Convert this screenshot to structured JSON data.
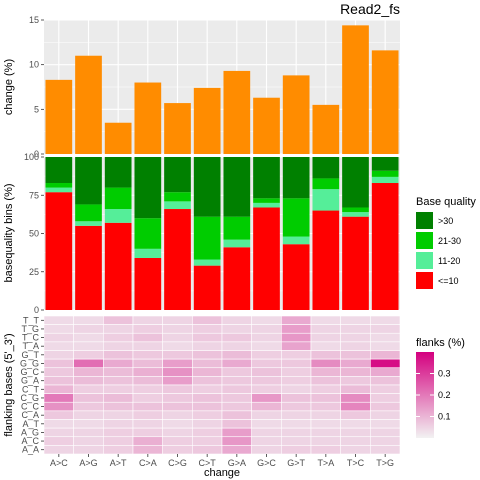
{
  "title": "Read2_fs",
  "x_axis_title": "change",
  "categories": [
    "A>C",
    "A>G",
    "A>T",
    "C>A",
    "C>G",
    "C>T",
    "G>A",
    "G>C",
    "G>T",
    "T>A",
    "T>C",
    "T>G"
  ],
  "chart_data": [
    {
      "type": "bar",
      "ylabel": "change (%)",
      "ylim": [
        0,
        15
      ],
      "yticks": [
        0,
        5,
        10,
        15
      ],
      "color": "#FF8C00",
      "categories": [
        "A>C",
        "A>G",
        "A>T",
        "C>A",
        "C>G",
        "C>T",
        "G>A",
        "G>C",
        "G>T",
        "T>A",
        "T>C",
        "T>G"
      ],
      "values": [
        8.3,
        11.0,
        3.5,
        8.0,
        5.7,
        7.4,
        9.3,
        6.3,
        8.8,
        5.5,
        14.4,
        11.6
      ]
    },
    {
      "type": "bar",
      "stacked": true,
      "ylabel": "basequality bins (%)",
      "ylim": [
        0,
        100
      ],
      "yticks": [
        0,
        25,
        50,
        75,
        100
      ],
      "categories": [
        "A>C",
        "A>G",
        "A>T",
        "C>A",
        "C>G",
        "C>T",
        "G>A",
        "G>C",
        "G>T",
        "T>A",
        "T>C",
        "T>G"
      ],
      "series": [
        {
          "name": "<=10",
          "color": "#FF0000",
          "values": [
            77,
            55,
            57,
            34,
            66,
            29,
            41,
            67,
            43,
            65,
            61,
            83
          ]
        },
        {
          "name": "11-20",
          "color": "#55EE99",
          "values": [
            3,
            3,
            9,
            6,
            5,
            4,
            5,
            3,
            5,
            14,
            3,
            4
          ]
        },
        {
          "name": "21-30",
          "color": "#00CC00",
          "values": [
            3,
            11,
            14,
            20,
            6,
            28,
            15,
            3,
            25,
            7,
            3,
            4
          ]
        },
        {
          "name": ">30",
          "color": "#008000",
          "values": [
            17,
            31,
            20,
            40,
            23,
            39,
            39,
            27,
            27,
            14,
            33,
            9
          ]
        }
      ],
      "legend": {
        "title": "Base quality",
        "entries": [
          ">30",
          "21-30",
          "11-20",
          "<=10"
        ],
        "position": "right"
      }
    },
    {
      "type": "heatmap",
      "ylabel": "flanking bases (5'_3')",
      "rows": [
        "T_T",
        "T_G",
        "T_C",
        "T_A",
        "G_T",
        "G_G",
        "G_C",
        "G_A",
        "C_T",
        "C_G",
        "C_C",
        "C_A",
        "A_T",
        "A_G",
        "A_C",
        "A_A"
      ],
      "columns": [
        "A>C",
        "A>G",
        "A>T",
        "C>A",
        "C>G",
        "C>T",
        "G>A",
        "G>C",
        "G>T",
        "T>A",
        "T>C",
        "T>G"
      ],
      "values": [
        [
          0.04,
          0.04,
          0.08,
          0.05,
          0.05,
          0.08,
          0.05,
          0.04,
          0.12,
          0.04,
          0.04,
          0.04
        ],
        [
          0.04,
          0.05,
          0.05,
          0.06,
          0.05,
          0.06,
          0.05,
          0.05,
          0.14,
          0.05,
          0.05,
          0.05
        ],
        [
          0.05,
          0.04,
          0.06,
          0.08,
          0.05,
          0.07,
          0.07,
          0.05,
          0.15,
          0.05,
          0.05,
          0.04
        ],
        [
          0.04,
          0.04,
          0.05,
          0.05,
          0.04,
          0.05,
          0.05,
          0.04,
          0.13,
          0.04,
          0.05,
          0.04
        ],
        [
          0.05,
          0.06,
          0.08,
          0.07,
          0.07,
          0.08,
          0.09,
          0.06,
          0.06,
          0.08,
          0.08,
          0.1
        ],
        [
          0.08,
          0.22,
          0.12,
          0.09,
          0.14,
          0.09,
          0.12,
          0.07,
          0.07,
          0.17,
          0.12,
          0.38
        ],
        [
          0.07,
          0.1,
          0.09,
          0.11,
          0.16,
          0.1,
          0.07,
          0.08,
          0.06,
          0.1,
          0.1,
          0.12
        ],
        [
          0.08,
          0.09,
          0.08,
          0.09,
          0.14,
          0.08,
          0.07,
          0.07,
          0.06,
          0.08,
          0.07,
          0.08
        ],
        [
          0.1,
          0.06,
          0.06,
          0.06,
          0.07,
          0.06,
          0.07,
          0.06,
          0.05,
          0.06,
          0.09,
          0.06
        ],
        [
          0.2,
          0.08,
          0.09,
          0.06,
          0.07,
          0.08,
          0.07,
          0.15,
          0.08,
          0.08,
          0.17,
          0.06
        ],
        [
          0.16,
          0.07,
          0.08,
          0.08,
          0.08,
          0.08,
          0.07,
          0.1,
          0.07,
          0.07,
          0.18,
          0.07
        ],
        [
          0.07,
          0.05,
          0.05,
          0.06,
          0.05,
          0.06,
          0.08,
          0.05,
          0.05,
          0.05,
          0.07,
          0.05
        ],
        [
          0.04,
          0.04,
          0.05,
          0.05,
          0.04,
          0.05,
          0.08,
          0.04,
          0.04,
          0.04,
          0.04,
          0.04
        ],
        [
          0.05,
          0.05,
          0.06,
          0.06,
          0.05,
          0.06,
          0.14,
          0.05,
          0.05,
          0.05,
          0.05,
          0.05
        ],
        [
          0.06,
          0.05,
          0.06,
          0.11,
          0.06,
          0.06,
          0.15,
          0.05,
          0.05,
          0.05,
          0.05,
          0.05
        ],
        [
          0.05,
          0.05,
          0.06,
          0.1,
          0.06,
          0.07,
          0.12,
          0.05,
          0.06,
          0.06,
          0.05,
          0.05
        ]
      ],
      "color_low": "#F2F2F2",
      "color_high": "#D4007F",
      "value_range": [
        0,
        0.4
      ],
      "legend": {
        "title": "flanks  (%)",
        "ticks": [
          0.1,
          0.2,
          0.3
        ],
        "position": "right"
      }
    }
  ]
}
